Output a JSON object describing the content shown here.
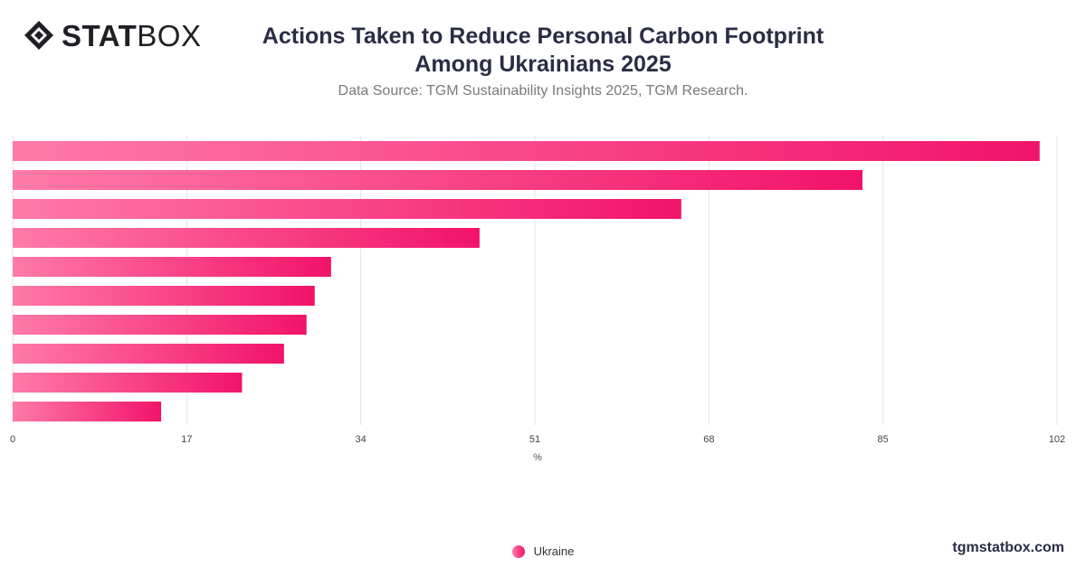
{
  "header": {
    "logo_bold": "STAT",
    "logo_regular": "BOX",
    "title_line1": "Actions Taken to Reduce Personal Carbon Footprint",
    "title_line2": "Among Ukrainians 2025",
    "subtitle": "Data Source: TGM Sustainability Insights 2025, TGM Research."
  },
  "footer": {
    "site": "tgmstatbox.com"
  },
  "colors": {
    "bar_start": "#ff7aa8",
    "bar_end": "#f2136a",
    "grid": "#e3e3e3",
    "text": "#2b2d45"
  },
  "chart_data": {
    "type": "bar",
    "orientation": "horizontal",
    "xlabel": "%",
    "xlim": [
      0,
      102
    ],
    "xticks": [
      0,
      17,
      34,
      51,
      68,
      85,
      102
    ],
    "grid": true,
    "legend_position": "bottom",
    "series": [
      {
        "name": "Ukraine",
        "values": [
          100.3,
          83.0,
          65.3,
          45.6,
          31.1,
          29.5,
          28.7,
          26.5,
          22.4,
          14.5
        ]
      }
    ]
  }
}
